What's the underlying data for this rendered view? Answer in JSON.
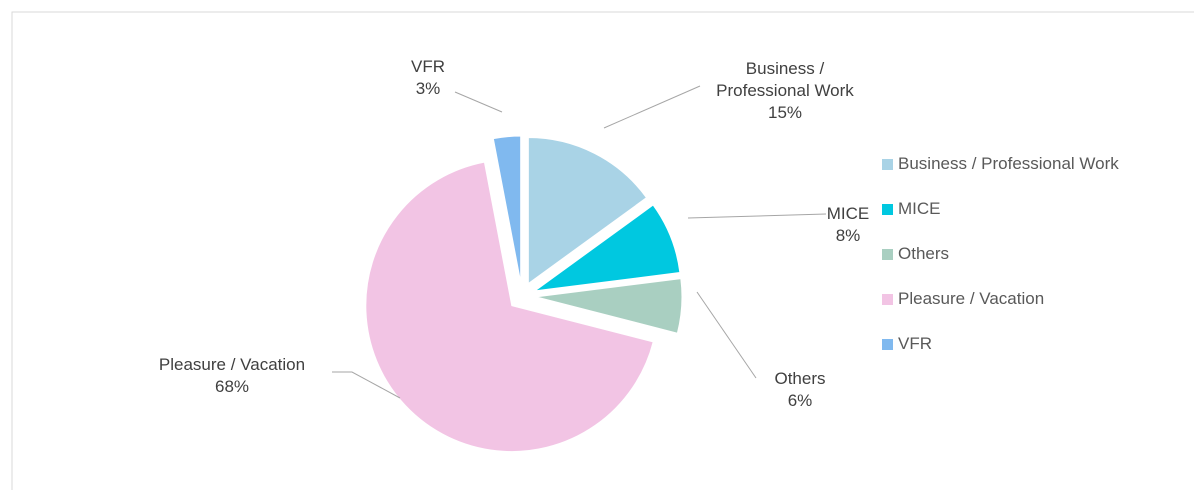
{
  "chart_data": {
    "type": "pie",
    "categories": [
      "Business / Professional Work",
      "MICE",
      "Others",
      "Pleasure / Vacation",
      "VFR"
    ],
    "values": [
      15,
      8,
      6,
      68,
      3
    ],
    "value_labels": [
      "15%",
      "8%",
      "6%",
      "68%",
      "3%"
    ],
    "colors": [
      "#a9d3e6",
      "#00c8e0",
      "#a9cfc1",
      "#f2c4e4",
      "#80b9ef"
    ],
    "legend": "right"
  }
}
